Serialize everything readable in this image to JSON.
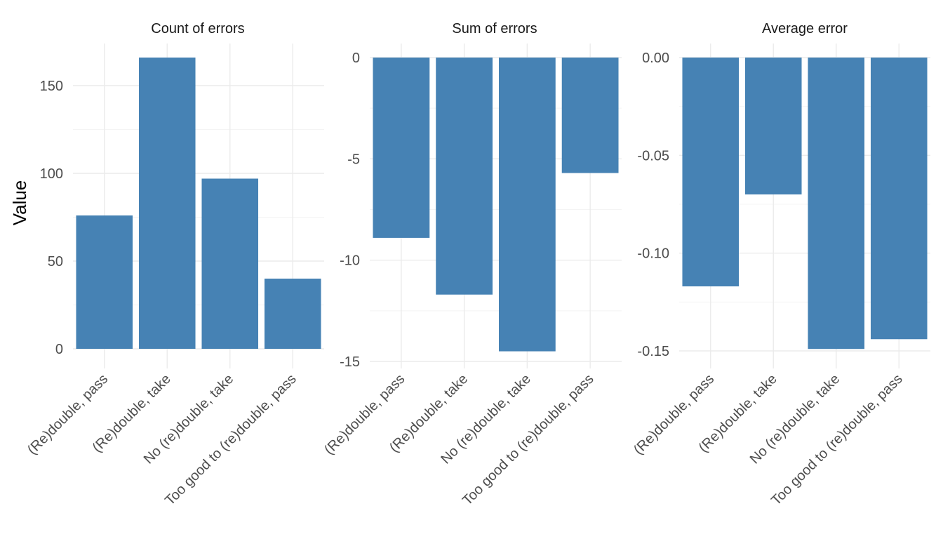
{
  "figure": {
    "ylabel": "Value",
    "colors": {
      "bar": "#4682B4",
      "grid_major": "#EBEBEB",
      "grid_minor": "#F4F4F4",
      "tick_text": "#4D4D4D",
      "title_text": "#1A1A1A"
    }
  },
  "chart_data": [
    {
      "type": "bar",
      "title": "Count of errors",
      "categories": [
        "(Re)double, pass",
        "(Re)double, take",
        "No (re)double, take",
        "Too good to (re)double, pass"
      ],
      "values": [
        76,
        166,
        97,
        40
      ],
      "ylim": [
        0,
        170
      ],
      "yticks": [
        0,
        50,
        100,
        150
      ],
      "ytick_labels": [
        "0",
        "50",
        "100",
        "150"
      ],
      "grid": true
    },
    {
      "type": "bar",
      "title": "Sum of errors",
      "categories": [
        "(Re)double, pass",
        "(Re)double, take",
        "No (re)double, take",
        "Too good to (re)double, pass"
      ],
      "values": [
        -8.9,
        -11.7,
        -14.5,
        -5.7
      ],
      "ylim": [
        -15,
        0
      ],
      "yticks": [
        0,
        -5,
        -10,
        -15
      ],
      "ytick_labels": [
        "0",
        "-5",
        "-10",
        "-15"
      ],
      "grid": true
    },
    {
      "type": "bar",
      "title": "Average error",
      "categories": [
        "(Re)double, pass",
        "(Re)double, take",
        "No (re)double, take",
        "Too good to (re)double, pass"
      ],
      "values": [
        -0.117,
        -0.07,
        -0.149,
        -0.144
      ],
      "ylim": [
        -0.15,
        0
      ],
      "yticks": [
        0.0,
        -0.05,
        -0.1,
        -0.15
      ],
      "ytick_labels": [
        "0.00",
        "-0.05",
        "-0.10",
        "-0.15"
      ],
      "grid": true
    }
  ]
}
